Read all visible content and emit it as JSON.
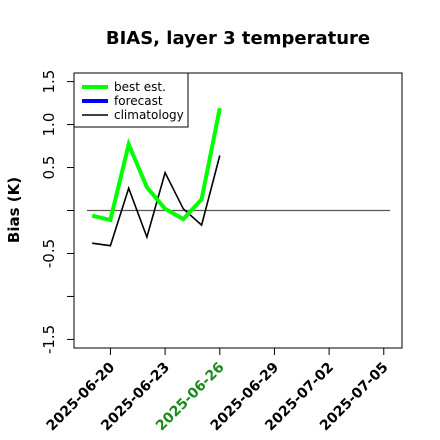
{
  "chart_data": {
    "type": "line",
    "title": "BIAS, layer 3 temperature",
    "xlabel": "",
    "ylabel": "Bias (K)",
    "ylim": [
      -1.6,
      1.6
    ],
    "yticks": [
      "-1.5",
      "-0.5",
      "0.5",
      "1.0",
      "1.5"
    ],
    "ytick_values": [
      -1.5,
      -0.5,
      0.5,
      1.0,
      1.5
    ],
    "xlim": [
      "2025-06-18",
      "2025-07-06"
    ],
    "xticks": [
      "2025-06-20",
      "2025-06-23",
      "2025-06-26",
      "2025-06-29",
      "2025-07-02",
      "2025-07-05"
    ],
    "highlight_xtick": "2025-06-26",
    "highlight_color": "#1a8a1a",
    "reference_line": 0,
    "legend_position": "top-left",
    "series": [
      {
        "name": "best est.",
        "color": "#00ff00",
        "x": [
          "2025-06-19",
          "2025-06-20",
          "2025-06-21",
          "2025-06-22",
          "2025-06-23",
          "2025-06-24",
          "2025-06-25",
          "2025-06-26"
        ],
        "values": [
          -0.06,
          -0.11,
          0.77,
          0.27,
          0.02,
          -0.1,
          0.13,
          1.19
        ]
      },
      {
        "name": "forecast",
        "color": "#0000ff",
        "x": [],
        "values": []
      },
      {
        "name": "climatology",
        "color": "#000000",
        "x": [
          "2025-06-19",
          "2025-06-20",
          "2025-06-21",
          "2025-06-22",
          "2025-06-23",
          "2025-06-24",
          "2025-06-25",
          "2025-06-26"
        ],
        "values": [
          -0.38,
          -0.41,
          0.26,
          -0.31,
          0.44,
          0.02,
          -0.17,
          0.64
        ]
      }
    ]
  }
}
